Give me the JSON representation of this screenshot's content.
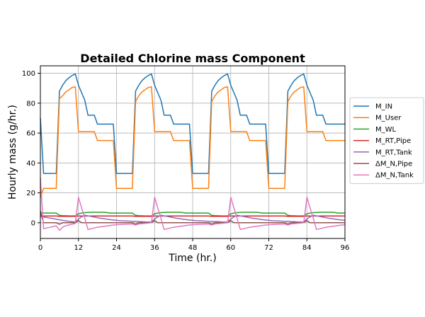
{
  "chart_data": {
    "type": "line",
    "title": "Detailed Chlorine mass Component",
    "xlabel": "Time (hr.)",
    "ylabel": "Hourly mass (g/hr.)",
    "xlim": [
      0,
      96
    ],
    "ylim": [
      -10.5,
      105
    ],
    "xticks": [
      0,
      12,
      24,
      36,
      48,
      60,
      72,
      84,
      96
    ],
    "yticks": [
      0,
      20,
      40,
      60,
      80,
      100
    ],
    "grid": true,
    "legend_position": "outside-right",
    "series": [
      {
        "name": "M_IN",
        "color": "#1f77b4",
        "values": [
          70,
          33,
          33,
          33,
          33,
          33,
          88,
          92,
          95,
          97,
          98.5,
          99.5,
          92,
          87,
          82,
          72,
          72,
          72,
          66,
          66,
          66,
          66,
          66,
          66,
          33,
          33,
          33,
          33,
          33,
          33,
          88,
          92,
          95,
          97,
          98.5,
          99.5,
          92,
          87,
          82,
          72,
          72,
          72,
          66,
          66,
          66,
          66,
          66,
          66,
          33,
          33,
          33,
          33,
          33,
          33,
          88,
          92,
          95,
          97,
          98.5,
          99.5,
          92,
          87,
          82,
          72,
          72,
          72,
          66,
          66,
          66,
          66,
          66,
          66,
          33,
          33,
          33,
          33,
          33,
          33,
          88,
          92,
          95,
          97,
          98.5,
          99.5,
          92,
          87,
          82,
          72,
          72,
          72,
          66,
          66,
          66,
          66,
          66,
          66,
          66
        ]
      },
      {
        "name": "M_User",
        "color": "#ff7f0e",
        "values": [
          17,
          23,
          23,
          23,
          23,
          23,
          83,
          85,
          87.5,
          89,
          90.5,
          91,
          61,
          61,
          61,
          61,
          61,
          61,
          55,
          55,
          55,
          55,
          55,
          55,
          23,
          23,
          23,
          23,
          23,
          23,
          81,
          85,
          87.5,
          89,
          90.5,
          91,
          61,
          61,
          61,
          61,
          61,
          61,
          55,
          55,
          55,
          55,
          55,
          55,
          23,
          23,
          23,
          23,
          23,
          23,
          81,
          85,
          87.5,
          89,
          90.5,
          91,
          61,
          61,
          61,
          61,
          61,
          61,
          55,
          55,
          55,
          55,
          55,
          55,
          23,
          23,
          23,
          23,
          23,
          23,
          81,
          85,
          87.5,
          89,
          90.5,
          91,
          61,
          61,
          61,
          61,
          61,
          61,
          55,
          55,
          55,
          55,
          55,
          55,
          55
        ]
      },
      {
        "name": "M_WL",
        "color": "#2ca02c",
        "values": [
          6.5,
          6.5,
          6.5,
          6.5,
          6.5,
          6.5,
          5,
          4.8,
          4.7,
          4.6,
          4.6,
          4.6,
          6,
          6.5,
          6.8,
          6.9,
          7,
          7,
          7,
          7,
          7,
          6.8,
          6.5,
          6.5,
          6.5,
          6.5,
          6.5,
          6.5,
          6.5,
          6.5,
          5,
          4.8,
          4.7,
          4.6,
          4.6,
          4.6,
          6,
          6.5,
          6.8,
          6.9,
          7,
          7,
          7,
          7,
          7,
          6.8,
          6.5,
          6.5,
          6.5,
          6.5,
          6.5,
          6.5,
          6.5,
          6.5,
          5,
          4.8,
          4.7,
          4.6,
          4.6,
          4.6,
          6,
          6.5,
          6.8,
          6.9,
          7,
          7,
          7,
          7,
          7,
          6.8,
          6.5,
          6.5,
          6.5,
          6.5,
          6.5,
          6.5,
          6.5,
          6.5,
          5,
          4.8,
          4.7,
          4.6,
          4.6,
          4.6,
          6,
          6.5,
          6.8,
          6.9,
          7,
          7,
          7,
          7,
          7,
          6.8,
          6.5,
          6.5,
          6.5
        ]
      },
      {
        "name": "M_RT,Pipe",
        "color": "#d62728",
        "values": [
          5,
          4.5,
          4.5,
          4.5,
          4.5,
          4.5,
          4.3,
          4.3,
          4.3,
          4.3,
          4.3,
          4.3,
          4.5,
          4.5,
          4.5,
          4.5,
          4.5,
          4.5,
          4.5,
          4.5,
          4.5,
          4.5,
          4.5,
          4.5,
          4.5,
          4.5,
          4.5,
          4.5,
          4.5,
          4.5,
          4.3,
          4.3,
          4.3,
          4.3,
          4.3,
          4.3,
          4.5,
          4.5,
          4.5,
          4.5,
          4.5,
          4.5,
          4.5,
          4.5,
          4.5,
          4.5,
          4.5,
          4.5,
          4.5,
          4.5,
          4.5,
          4.5,
          4.5,
          4.5,
          4.3,
          4.3,
          4.3,
          4.3,
          4.3,
          4.3,
          4.5,
          4.5,
          4.5,
          4.5,
          4.5,
          4.5,
          4.5,
          4.5,
          4.5,
          4.5,
          4.5,
          4.5,
          4.5,
          4.5,
          4.5,
          4.5,
          4.5,
          4.5,
          4.3,
          4.3,
          4.3,
          4.3,
          4.3,
          4.3,
          4.5,
          4.5,
          4.5,
          4.5,
          4.5,
          4.5,
          4.5,
          4.5,
          4.5,
          4.5,
          4.5,
          4.5,
          4.5
        ]
      },
      {
        "name": "M_RT,Tank",
        "color": "#9467bd",
        "values": [
          4,
          3.8,
          3.5,
          3.2,
          2.8,
          2.4,
          2,
          1.6,
          1.3,
          1,
          0.8,
          0.6,
          2.5,
          4,
          5,
          4.6,
          4.2,
          3.8,
          3.4,
          3,
          2.7,
          2.4,
          2.1,
          1.8,
          1.6,
          1.4,
          1.3,
          1.2,
          1.1,
          1,
          0.9,
          0.8,
          0.7,
          0.6,
          0.5,
          0.5,
          2.5,
          4,
          5,
          4.6,
          4.2,
          3.8,
          3.4,
          3,
          2.7,
          2.4,
          2.1,
          1.8,
          1.6,
          1.4,
          1.3,
          1.2,
          1.1,
          1,
          0.9,
          0.8,
          0.7,
          0.6,
          0.5,
          0.5,
          2.5,
          4,
          5,
          4.6,
          4.2,
          3.8,
          3.4,
          3,
          2.7,
          2.4,
          2.1,
          1.8,
          1.6,
          1.4,
          1.3,
          1.2,
          1.1,
          1,
          0.9,
          0.8,
          0.7,
          0.6,
          0.5,
          0.5,
          2.5,
          4,
          5,
          4.6,
          4.2,
          3.8,
          3.4,
          3,
          2.7,
          2.4,
          2.1,
          1.8,
          1.6
        ]
      },
      {
        "name": "ΔM_N,Pipe",
        "color": "#8c564b",
        "values": [
          8,
          0,
          0,
          0,
          0,
          0,
          -1,
          0,
          0,
          0,
          0,
          0,
          1.5,
          0,
          0,
          0,
          0,
          0,
          0,
          0,
          0,
          0,
          0,
          0,
          0,
          0,
          0,
          0,
          0,
          0,
          -1,
          0,
          0,
          0,
          0,
          0,
          1.5,
          0,
          0,
          0,
          0,
          0,
          0,
          0,
          0,
          0,
          0,
          0,
          0,
          0,
          0,
          0,
          0,
          0,
          -1,
          0,
          0,
          0,
          0,
          0,
          1.5,
          0,
          0,
          0,
          0,
          0,
          0,
          0,
          0,
          0,
          0,
          0,
          0,
          0,
          0,
          0,
          0,
          0,
          -1,
          0,
          0,
          0,
          0,
          0,
          1.5,
          0,
          0,
          0,
          0,
          0,
          0,
          0,
          0,
          0,
          0,
          0,
          0
        ]
      },
      {
        "name": "ΔM_N,Tank",
        "color": "#e377c2",
        "values": [
          30,
          -4,
          -3.5,
          -3,
          -2.5,
          -2,
          -5,
          -3,
          -2,
          -1.5,
          -1,
          -0.5,
          17,
          10,
          3,
          -4.5,
          -4,
          -3.5,
          -3,
          -2.7,
          -2.4,
          -2.1,
          -1.8,
          -1.5,
          -1.3,
          -1.2,
          -1.1,
          -1,
          -0.9,
          -0.8,
          -1.5,
          -0.8,
          -0.6,
          -0.4,
          -0.2,
          0,
          17,
          10,
          3,
          -4.5,
          -4,
          -3.5,
          -3,
          -2.7,
          -2.4,
          -2.1,
          -1.8,
          -1.5,
          -1.3,
          -1.2,
          -1.1,
          -1,
          -0.9,
          -0.8,
          -1.5,
          -0.8,
          -0.6,
          -0.4,
          -0.2,
          0,
          17,
          10,
          3,
          -4.5,
          -4,
          -3.5,
          -3,
          -2.7,
          -2.4,
          -2.1,
          -1.8,
          -1.5,
          -1.3,
          -1.2,
          -1.1,
          -1,
          -0.9,
          -0.8,
          -1.5,
          -0.8,
          -0.6,
          -0.4,
          -0.2,
          0,
          17,
          10,
          3,
          -4.5,
          -4,
          -3.5,
          -3,
          -2.7,
          -2.4,
          -2.1,
          -1.8,
          -1.5,
          -1.3
        ]
      }
    ]
  }
}
